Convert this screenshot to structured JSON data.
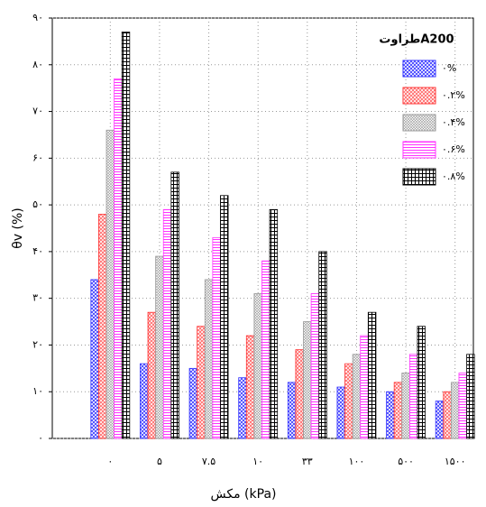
{
  "chart_data": {
    "type": "bar",
    "categories": [
      "۰",
      "۵",
      "۷.۵",
      "۱۰",
      "۳۳",
      "۱۰۰",
      "۵۰۰",
      "۱۵۰۰"
    ],
    "xlabel": "مکش (kPa)",
    "ylabel": "θv (%)",
    "legend_title": "طراوتA200",
    "legend": "upper right",
    "series": [
      {
        "name": "۰%",
        "color": "#3333ff",
        "values": [
          34,
          16,
          15,
          13,
          12,
          11,
          10,
          8
        ]
      },
      {
        "name": "۰.۲%",
        "color": "#ff3333",
        "values": [
          48,
          27,
          24,
          22,
          19,
          16,
          12,
          10
        ]
      },
      {
        "name": "۰.۴%",
        "color": "#999999",
        "values": [
          66,
          39,
          34,
          31,
          25,
          18,
          14,
          12
        ]
      },
      {
        "name": "۰.۶%",
        "color": "#ff33ff",
        "values": [
          77,
          49,
          43,
          38,
          31,
          22,
          18,
          14
        ]
      },
      {
        "name": "۰.۸%",
        "color": "#000000",
        "values": [
          87,
          57,
          52,
          49,
          40,
          27,
          24,
          18
        ]
      }
    ],
    "ylim": [
      0,
      90
    ],
    "yticks": [
      {
        "value": 0,
        "label": "۰"
      },
      {
        "value": 10,
        "label": "۱۰"
      },
      {
        "value": 20,
        "label": "۲۰"
      },
      {
        "value": 30,
        "label": "۳۰"
      },
      {
        "value": 40,
        "label": "۴۰"
      },
      {
        "value": 50,
        "label": "۵۰"
      },
      {
        "value": 60,
        "label": "۶۰"
      },
      {
        "value": 70,
        "label": "۷۰"
      },
      {
        "value": 80,
        "label": "۸۰"
      },
      {
        "value": 90,
        "label": "۹۰"
      }
    ],
    "grid": true
  }
}
